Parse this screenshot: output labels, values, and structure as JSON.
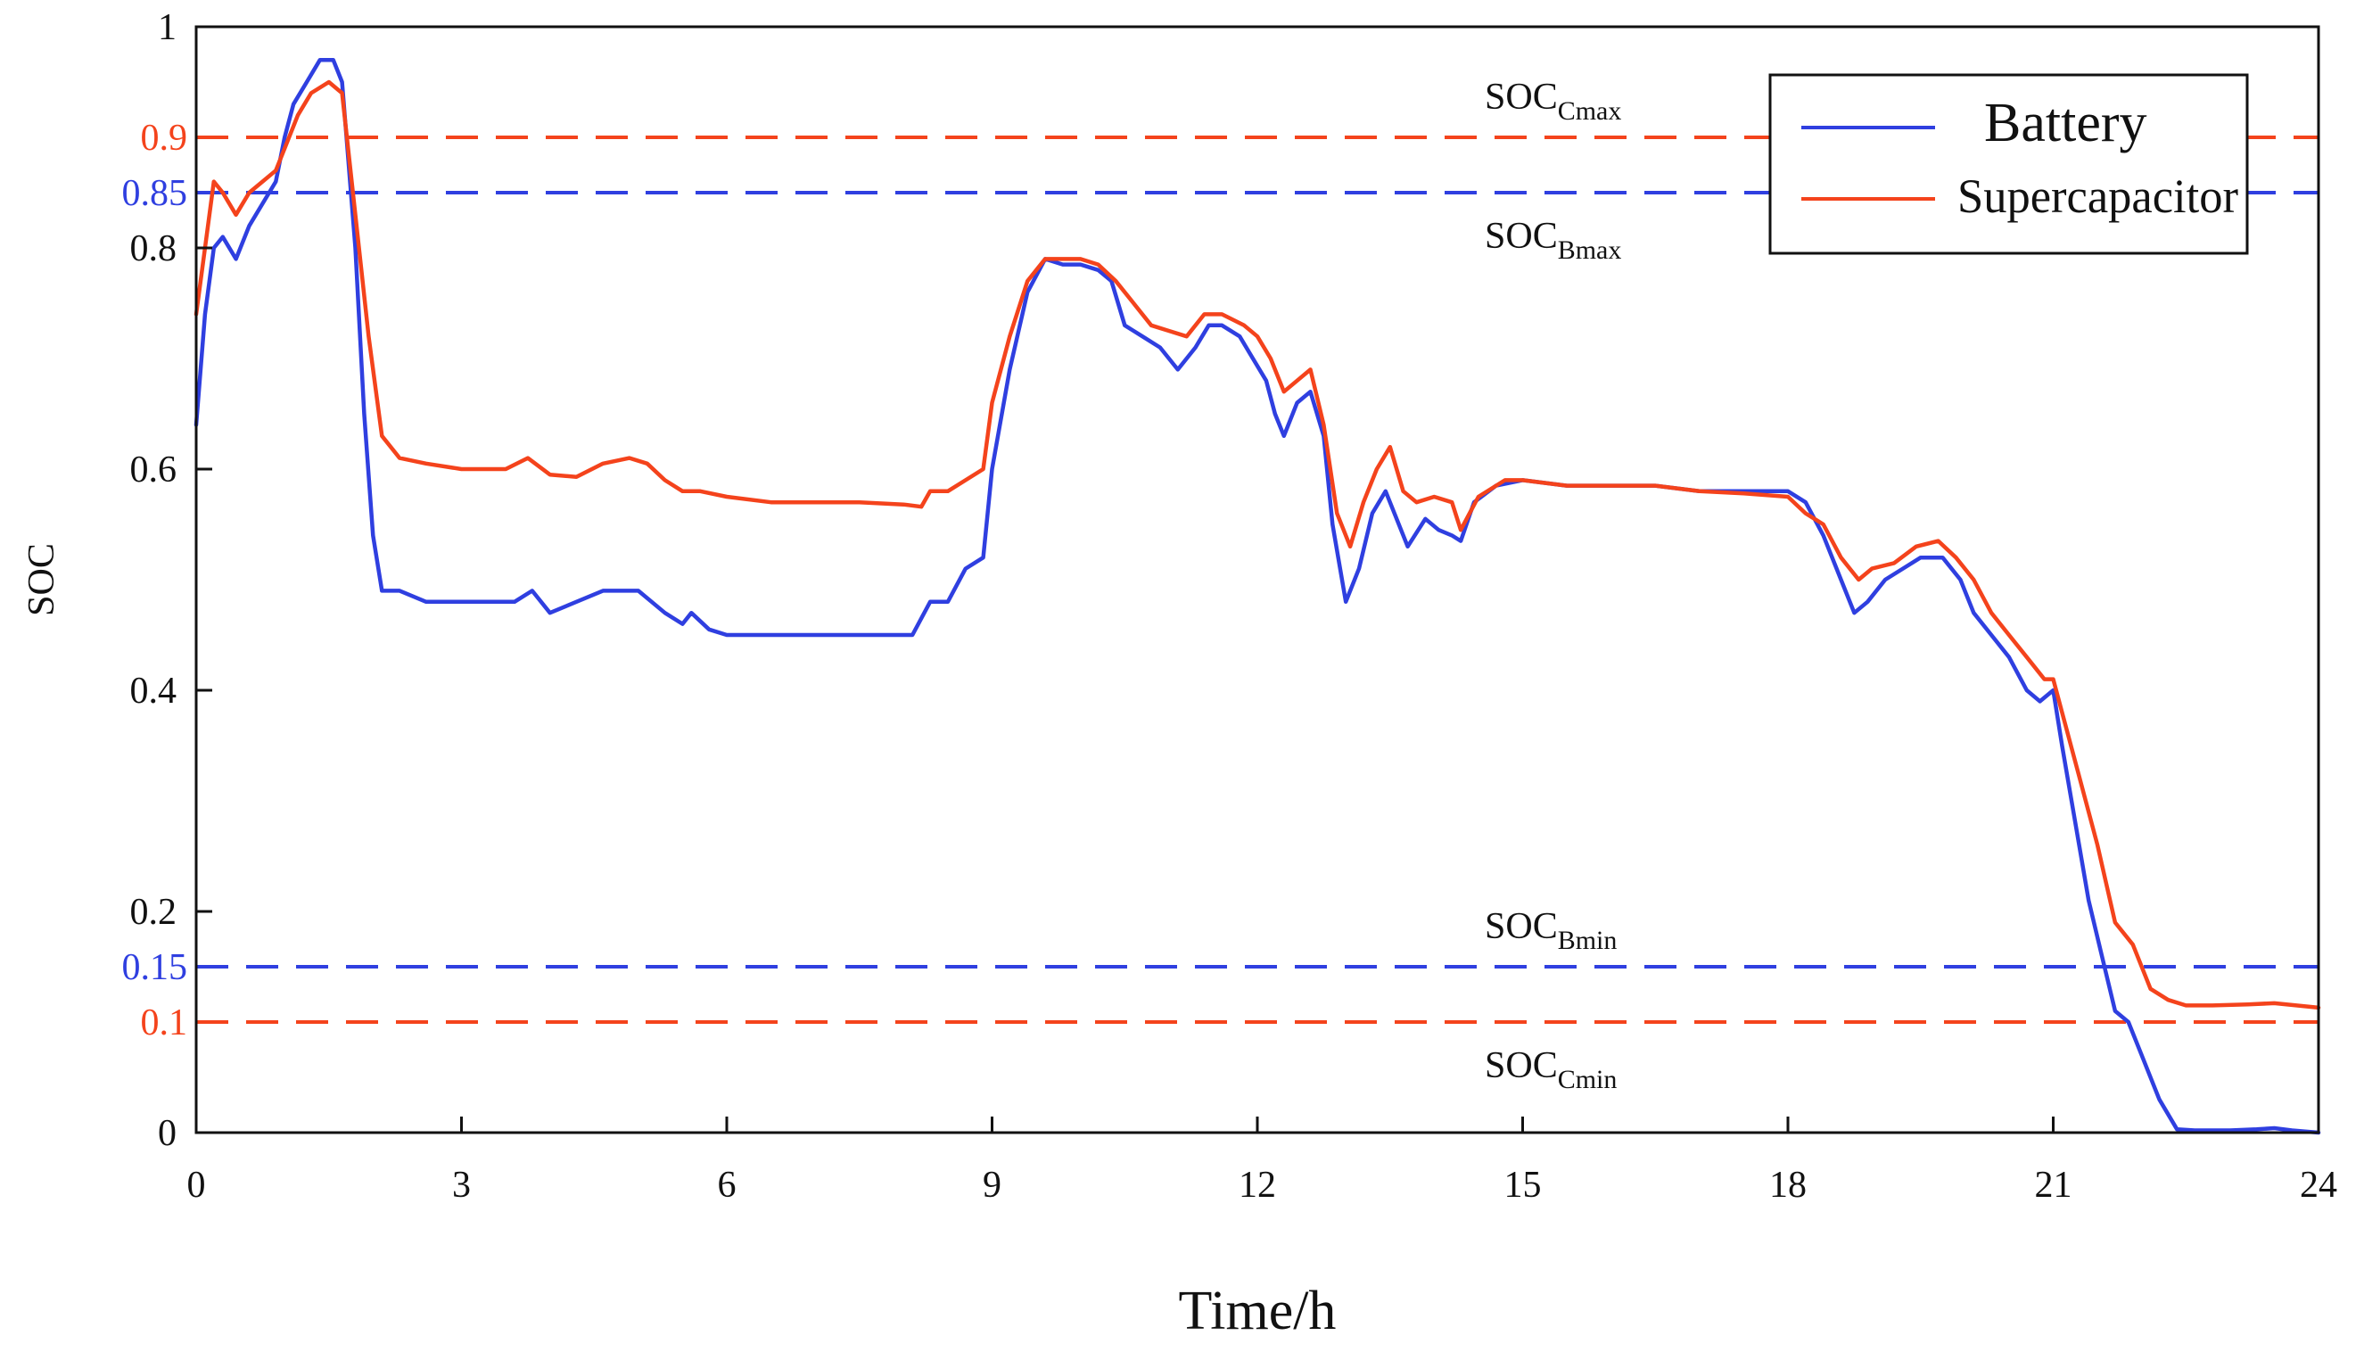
{
  "chart_data": {
    "type": "line",
    "xlabel": "Time/h",
    "ylabel": "SOC",
    "xlim": [
      0,
      24
    ],
    "ylim": [
      0,
      1
    ],
    "x_ticks": [
      "0",
      "3",
      "6",
      "9",
      "12",
      "15",
      "18",
      "21",
      "24"
    ],
    "y_ticks": [
      "0",
      "0.2",
      "0.4",
      "0.6",
      "0.8",
      "1"
    ],
    "reference_lines": [
      {
        "value": 0.9,
        "label": "0.9",
        "color": "#f4431c",
        "annotation_main": "SOC",
        "annotation_sub": "Cmax"
      },
      {
        "value": 0.85,
        "label": "0.85",
        "color": "#2f3fe0",
        "annotation_main": "SOC",
        "annotation_sub": "Bmax"
      },
      {
        "value": 0.15,
        "label": "0.15",
        "color": "#2f3fe0",
        "annotation_main": "SOC",
        "annotation_sub": "Bmin"
      },
      {
        "value": 0.1,
        "label": "0.1",
        "color": "#f4431c",
        "annotation_main": "SOC",
        "annotation_sub": "Cmin"
      }
    ],
    "legend_position": "top-right",
    "series": [
      {
        "name": "Battery",
        "color": "#2f3fe0",
        "points": [
          [
            0,
            0.64
          ],
          [
            0.1,
            0.74
          ],
          [
            0.2,
            0.8
          ],
          [
            0.3,
            0.81
          ],
          [
            0.45,
            0.79
          ],
          [
            0.6,
            0.82
          ],
          [
            0.75,
            0.84
          ],
          [
            0.9,
            0.86
          ],
          [
            1.0,
            0.9
          ],
          [
            1.1,
            0.93
          ],
          [
            1.25,
            0.95
          ],
          [
            1.4,
            0.97
          ],
          [
            1.55,
            0.97
          ],
          [
            1.65,
            0.95
          ],
          [
            1.8,
            0.8
          ],
          [
            1.9,
            0.65
          ],
          [
            2.0,
            0.54
          ],
          [
            2.1,
            0.49
          ],
          [
            2.3,
            0.49
          ],
          [
            2.6,
            0.48
          ],
          [
            3.0,
            0.48
          ],
          [
            3.3,
            0.48
          ],
          [
            3.6,
            0.48
          ],
          [
            3.8,
            0.49
          ],
          [
            4.0,
            0.47
          ],
          [
            4.3,
            0.48
          ],
          [
            4.6,
            0.49
          ],
          [
            5.0,
            0.49
          ],
          [
            5.3,
            0.47
          ],
          [
            5.5,
            0.46
          ],
          [
            5.6,
            0.47
          ],
          [
            5.8,
            0.455
          ],
          [
            6.0,
            0.45
          ],
          [
            6.5,
            0.45
          ],
          [
            7.0,
            0.45
          ],
          [
            7.5,
            0.45
          ],
          [
            7.8,
            0.45
          ],
          [
            8.1,
            0.45
          ],
          [
            8.3,
            0.48
          ],
          [
            8.5,
            0.48
          ],
          [
            8.7,
            0.51
          ],
          [
            8.9,
            0.52
          ],
          [
            9.0,
            0.6
          ],
          [
            9.2,
            0.69
          ],
          [
            9.4,
            0.76
          ],
          [
            9.6,
            0.79
          ],
          [
            9.8,
            0.785
          ],
          [
            10.0,
            0.785
          ],
          [
            10.2,
            0.78
          ],
          [
            10.35,
            0.77
          ],
          [
            10.5,
            0.73
          ],
          [
            10.7,
            0.72
          ],
          [
            10.9,
            0.71
          ],
          [
            11.1,
            0.69
          ],
          [
            11.3,
            0.71
          ],
          [
            11.45,
            0.73
          ],
          [
            11.6,
            0.73
          ],
          [
            11.8,
            0.72
          ],
          [
            11.95,
            0.7
          ],
          [
            12.1,
            0.68
          ],
          [
            12.2,
            0.65
          ],
          [
            12.3,
            0.63
          ],
          [
            12.45,
            0.66
          ],
          [
            12.6,
            0.67
          ],
          [
            12.75,
            0.63
          ],
          [
            12.85,
            0.55
          ],
          [
            13.0,
            0.48
          ],
          [
            13.15,
            0.51
          ],
          [
            13.3,
            0.56
          ],
          [
            13.45,
            0.58
          ],
          [
            13.55,
            0.56
          ],
          [
            13.7,
            0.53
          ],
          [
            13.9,
            0.555
          ],
          [
            14.05,
            0.545
          ],
          [
            14.2,
            0.54
          ],
          [
            14.3,
            0.535
          ],
          [
            14.45,
            0.57
          ],
          [
            14.7,
            0.585
          ],
          [
            15.0,
            0.59
          ],
          [
            15.5,
            0.585
          ],
          [
            16.0,
            0.585
          ],
          [
            16.5,
            0.585
          ],
          [
            17.0,
            0.58
          ],
          [
            17.5,
            0.58
          ],
          [
            18.0,
            0.58
          ],
          [
            18.2,
            0.57
          ],
          [
            18.4,
            0.54
          ],
          [
            18.6,
            0.5
          ],
          [
            18.75,
            0.47
          ],
          [
            18.9,
            0.48
          ],
          [
            19.1,
            0.5
          ],
          [
            19.3,
            0.51
          ],
          [
            19.5,
            0.52
          ],
          [
            19.75,
            0.52
          ],
          [
            19.95,
            0.5
          ],
          [
            20.1,
            0.47
          ],
          [
            20.3,
            0.45
          ],
          [
            20.5,
            0.43
          ],
          [
            20.7,
            0.4
          ],
          [
            20.85,
            0.39
          ],
          [
            21.0,
            0.4
          ],
          [
            21.1,
            0.35
          ],
          [
            21.25,
            0.28
          ],
          [
            21.4,
            0.21
          ],
          [
            21.55,
            0.16
          ],
          [
            21.7,
            0.11
          ],
          [
            21.85,
            0.1
          ],
          [
            22.0,
            0.07
          ],
          [
            22.2,
            0.03
          ],
          [
            22.4,
            0.003
          ],
          [
            22.6,
            0.002
          ],
          [
            23.0,
            0.002
          ],
          [
            23.3,
            0.003
          ],
          [
            23.5,
            0.004
          ],
          [
            23.7,
            0.002
          ],
          [
            24.0,
            0.0
          ]
        ]
      },
      {
        "name": "Supercapacitor",
        "color": "#f4431c",
        "points": [
          [
            0,
            0.74
          ],
          [
            0.1,
            0.8
          ],
          [
            0.2,
            0.86
          ],
          [
            0.3,
            0.85
          ],
          [
            0.45,
            0.83
          ],
          [
            0.6,
            0.85
          ],
          [
            0.75,
            0.86
          ],
          [
            0.9,
            0.87
          ],
          [
            1.0,
            0.89
          ],
          [
            1.15,
            0.92
          ],
          [
            1.3,
            0.94
          ],
          [
            1.5,
            0.95
          ],
          [
            1.65,
            0.94
          ],
          [
            1.8,
            0.83
          ],
          [
            1.95,
            0.72
          ],
          [
            2.1,
            0.63
          ],
          [
            2.3,
            0.61
          ],
          [
            2.6,
            0.605
          ],
          [
            3.0,
            0.6
          ],
          [
            3.5,
            0.6
          ],
          [
            3.75,
            0.61
          ],
          [
            4.0,
            0.595
          ],
          [
            4.3,
            0.593
          ],
          [
            4.6,
            0.605
          ],
          [
            4.9,
            0.61
          ],
          [
            5.1,
            0.605
          ],
          [
            5.3,
            0.59
          ],
          [
            5.5,
            0.58
          ],
          [
            5.7,
            0.58
          ],
          [
            6.0,
            0.575
          ],
          [
            6.5,
            0.57
          ],
          [
            7.0,
            0.57
          ],
          [
            7.5,
            0.57
          ],
          [
            8.0,
            0.568
          ],
          [
            8.2,
            0.566
          ],
          [
            8.3,
            0.58
          ],
          [
            8.5,
            0.58
          ],
          [
            8.7,
            0.59
          ],
          [
            8.9,
            0.6
          ],
          [
            9.0,
            0.66
          ],
          [
            9.2,
            0.72
          ],
          [
            9.4,
            0.77
          ],
          [
            9.6,
            0.79
          ],
          [
            9.8,
            0.79
          ],
          [
            10.0,
            0.79
          ],
          [
            10.2,
            0.785
          ],
          [
            10.4,
            0.77
          ],
          [
            10.6,
            0.75
          ],
          [
            10.8,
            0.73
          ],
          [
            11.0,
            0.725
          ],
          [
            11.2,
            0.72
          ],
          [
            11.4,
            0.74
          ],
          [
            11.6,
            0.74
          ],
          [
            11.85,
            0.73
          ],
          [
            12.0,
            0.72
          ],
          [
            12.15,
            0.7
          ],
          [
            12.3,
            0.67
          ],
          [
            12.45,
            0.68
          ],
          [
            12.6,
            0.69
          ],
          [
            12.75,
            0.64
          ],
          [
            12.9,
            0.56
          ],
          [
            13.05,
            0.53
          ],
          [
            13.2,
            0.57
          ],
          [
            13.35,
            0.6
          ],
          [
            13.5,
            0.62
          ],
          [
            13.65,
            0.58
          ],
          [
            13.8,
            0.57
          ],
          [
            14.0,
            0.575
          ],
          [
            14.2,
            0.57
          ],
          [
            14.3,
            0.545
          ],
          [
            14.5,
            0.575
          ],
          [
            14.8,
            0.59
          ],
          [
            15.0,
            0.59
          ],
          [
            15.5,
            0.585
          ],
          [
            16.0,
            0.585
          ],
          [
            16.5,
            0.585
          ],
          [
            17.0,
            0.58
          ],
          [
            17.5,
            0.578
          ],
          [
            18.0,
            0.575
          ],
          [
            18.2,
            0.56
          ],
          [
            18.4,
            0.55
          ],
          [
            18.6,
            0.52
          ],
          [
            18.8,
            0.5
          ],
          [
            18.95,
            0.51
          ],
          [
            19.2,
            0.515
          ],
          [
            19.45,
            0.53
          ],
          [
            19.7,
            0.535
          ],
          [
            19.9,
            0.52
          ],
          [
            20.1,
            0.5
          ],
          [
            20.3,
            0.47
          ],
          [
            20.5,
            0.45
          ],
          [
            20.7,
            0.43
          ],
          [
            20.9,
            0.41
          ],
          [
            21.0,
            0.41
          ],
          [
            21.1,
            0.38
          ],
          [
            21.3,
            0.32
          ],
          [
            21.5,
            0.26
          ],
          [
            21.7,
            0.19
          ],
          [
            21.9,
            0.17
          ],
          [
            22.1,
            0.13
          ],
          [
            22.3,
            0.12
          ],
          [
            22.5,
            0.115
          ],
          [
            22.8,
            0.115
          ],
          [
            23.2,
            0.116
          ],
          [
            23.5,
            0.117
          ],
          [
            24.0,
            0.113
          ]
        ]
      }
    ]
  }
}
